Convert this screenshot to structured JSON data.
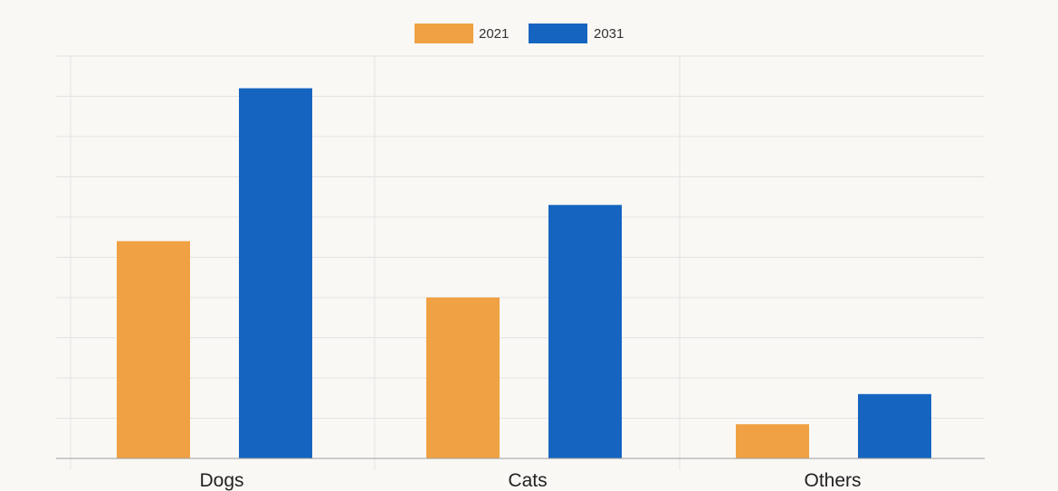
{
  "legend": {
    "items": [
      {
        "label": "2021",
        "color": "#f0a143"
      },
      {
        "label": "2031",
        "color": "#1565c0"
      }
    ]
  },
  "chart_data": {
    "type": "bar",
    "categories": [
      "Dogs",
      "Cats",
      "Others"
    ],
    "series": [
      {
        "name": "2021",
        "values": [
          54,
          40,
          8.5
        ],
        "color": "#f0a143"
      },
      {
        "name": "2031",
        "values": [
          92,
          63,
          16
        ],
        "color": "#1565c0"
      }
    ],
    "ylim": [
      0,
      100
    ],
    "grid": true,
    "legend_position": "top-center",
    "title": "",
    "xlabel": "",
    "ylabel": ""
  }
}
